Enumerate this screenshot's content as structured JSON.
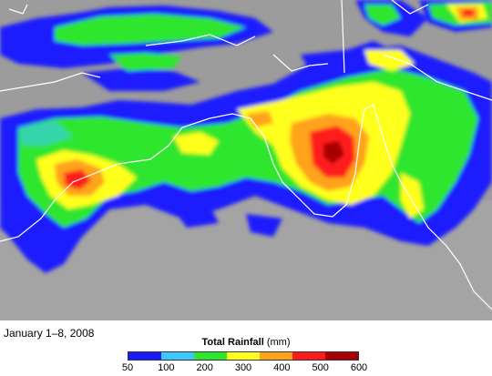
{
  "caption": {
    "date": "January 1–8, 2008"
  },
  "legend": {
    "title": "Total Rainfall",
    "unit": "(mm)",
    "ticks": [
      "50",
      "100",
      "200",
      "300",
      "400",
      "500",
      "600"
    ],
    "colors": [
      "#1a1aff",
      "#3cc8ff",
      "#2ee62e",
      "#ffff1a",
      "#ffa31a",
      "#ff1a1a",
      "#a80000"
    ]
  },
  "map": {
    "background_terrain": "#9a9a9a",
    "coastline": "#ffffff"
  }
}
